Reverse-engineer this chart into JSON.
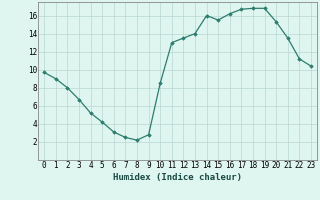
{
  "x": [
    0,
    1,
    2,
    3,
    4,
    5,
    6,
    7,
    8,
    9,
    10,
    11,
    12,
    13,
    14,
    15,
    16,
    17,
    18,
    19,
    20,
    21,
    22,
    23
  ],
  "y": [
    9.7,
    9.0,
    8.0,
    6.7,
    5.2,
    4.2,
    3.1,
    2.5,
    2.2,
    2.8,
    8.5,
    13.0,
    13.5,
    14.0,
    16.0,
    15.5,
    16.2,
    16.7,
    16.8,
    16.8,
    15.3,
    13.5,
    11.2,
    10.4
  ],
  "line_color": "#2d7d6e",
  "marker": "D",
  "marker_size": 1.8,
  "bg_color": "#dff5f0",
  "grid_color": "#b8d8d2",
  "xlabel": "Humidex (Indice chaleur)",
  "xlim": [
    -0.5,
    23.5
  ],
  "ylim": [
    0,
    17.5
  ],
  "yticks": [
    2,
    4,
    6,
    8,
    10,
    12,
    14,
    16
  ],
  "xticks": [
    0,
    1,
    2,
    3,
    4,
    5,
    6,
    7,
    8,
    9,
    10,
    11,
    12,
    13,
    14,
    15,
    16,
    17,
    18,
    19,
    20,
    21,
    22,
    23
  ],
  "xtick_labels": [
    "0",
    "1",
    "2",
    "3",
    "4",
    "5",
    "6",
    "7",
    "8",
    "9",
    "10",
    "11",
    "12",
    "13",
    "14",
    "15",
    "16",
    "17",
    "18",
    "19",
    "20",
    "21",
    "22",
    "23"
  ],
  "label_fontsize": 6.5,
  "tick_fontsize": 5.5
}
